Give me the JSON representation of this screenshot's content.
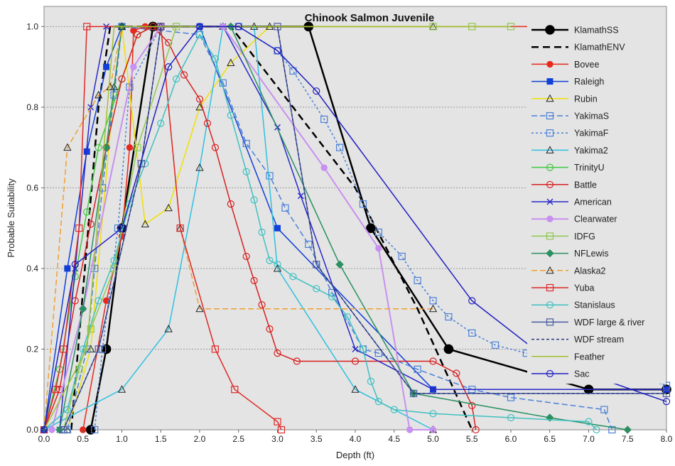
{
  "chart_data": {
    "type": "line",
    "title": "Chinook Salmon Juvenile",
    "xlabel": "Depth (ft)",
    "ylabel": "Probable Suitability",
    "xlim": [
      0,
      8
    ],
    "ylim": [
      0,
      1.05
    ],
    "xticks": [
      "0.0",
      "0.5",
      "1.0",
      "1.5",
      "2.0",
      "2.5",
      "3.0",
      "3.5",
      "4.0",
      "4.5",
      "5.0",
      "5.5",
      "6.0",
      "6.5",
      "7.0",
      "7.5",
      "8.0"
    ],
    "yticks": [
      "0.0",
      "0.2",
      "0.4",
      "0.6",
      "0.8",
      "1.0"
    ],
    "grid": "horizontal dotted",
    "legend_position": "right",
    "series": [
      {
        "name": "KlamathSS",
        "color": "#000000",
        "dash": "",
        "width": 2.5,
        "marker": "circle-filled",
        "points": [
          [
            0.6,
            0
          ],
          [
            0.8,
            0.2
          ],
          [
            1.0,
            0.5
          ],
          [
            1.4,
            1.0
          ],
          [
            3.4,
            1.0
          ],
          [
            4.2,
            0.5
          ],
          [
            5.2,
            0.2
          ],
          [
            7.0,
            0.1
          ],
          [
            8.0,
            0.1
          ]
        ]
      },
      {
        "name": "KlamathENV",
        "color": "#000000",
        "dash": "10,6",
        "width": 2.5,
        "marker": "none",
        "points": [
          [
            0.35,
            0
          ],
          [
            0.7,
            0.8
          ],
          [
            0.85,
            1.0
          ],
          [
            2.4,
            1.0
          ],
          [
            4.0,
            0.6
          ],
          [
            4.8,
            0.3
          ],
          [
            5.5,
            0
          ]
        ]
      },
      {
        "name": "Bovee",
        "color": "#e8281e",
        "dash": "",
        "width": 1.5,
        "marker": "circle-filled",
        "points": [
          [
            0.5,
            0
          ],
          [
            0.8,
            0.32
          ],
          [
            1.0,
            0.48
          ],
          [
            1.1,
            0.7
          ],
          [
            1.15,
            0.99
          ],
          [
            1.3,
            1.0
          ],
          [
            6.5,
            1.0
          ]
        ]
      },
      {
        "name": "Raleigh",
        "color": "#1040d8",
        "dash": "",
        "width": 1.5,
        "marker": "square-filled",
        "points": [
          [
            0,
            0
          ],
          [
            0.3,
            0.4
          ],
          [
            0.55,
            0.69
          ],
          [
            0.8,
            0.9
          ],
          [
            1.0,
            1.0
          ],
          [
            2.0,
            1.0
          ],
          [
            3.0,
            0.5
          ],
          [
            5.0,
            0.1
          ],
          [
            8.0,
            0.1
          ]
        ]
      },
      {
        "name": "Rubin",
        "color": "#f0e000",
        "dash": "",
        "width": 1.5,
        "marker": "triangle-open",
        "points": [
          [
            0.3,
            0
          ],
          [
            0.6,
            0.2
          ],
          [
            0.9,
            0.85
          ],
          [
            1.0,
            1.0
          ],
          [
            1.3,
            0.51
          ],
          [
            1.6,
            0.55
          ],
          [
            2.0,
            0.8
          ],
          [
            2.4,
            0.91
          ],
          [
            2.9,
            1.0
          ],
          [
            5.0,
            1.0
          ]
        ]
      },
      {
        "name": "YakimaS",
        "color": "#4a80d8",
        "dash": "8,4",
        "width": 1.5,
        "marker": "square-open",
        "points": [
          [
            0.3,
            0
          ],
          [
            0.55,
            0.2
          ],
          [
            0.65,
            0.4
          ],
          [
            0.75,
            0.6
          ],
          [
            0.9,
            0.83
          ],
          [
            1.0,
            1.0
          ],
          [
            2.0,
            0.98
          ],
          [
            2.3,
            0.86
          ],
          [
            2.6,
            0.71
          ],
          [
            2.9,
            0.63
          ],
          [
            3.1,
            0.55
          ],
          [
            3.4,
            0.46
          ],
          [
            3.7,
            0.34
          ],
          [
            4.1,
            0.2
          ],
          [
            4.3,
            0.19
          ],
          [
            4.8,
            0.15
          ],
          [
            5.5,
            0.1
          ],
          [
            6.0,
            0.08
          ],
          [
            7.2,
            0.05
          ],
          [
            7.3,
            0
          ]
        ]
      },
      {
        "name": "YakimaF",
        "color": "#4a80d8",
        "dash": "3,3",
        "width": 1.5,
        "marker": "square-open",
        "points": [
          [
            0.65,
            0
          ],
          [
            0.75,
            0.2
          ],
          [
            0.95,
            0.5
          ],
          [
            1.1,
            0.85
          ],
          [
            1.5,
            1.0
          ],
          [
            2.5,
            1.0
          ],
          [
            3.0,
            0.94
          ],
          [
            3.2,
            0.89
          ],
          [
            3.6,
            0.77
          ],
          [
            3.8,
            0.7
          ],
          [
            4.1,
            0.56
          ],
          [
            4.3,
            0.49
          ],
          [
            4.6,
            0.43
          ],
          [
            4.8,
            0.37
          ],
          [
            5.0,
            0.32
          ],
          [
            5.2,
            0.28
          ],
          [
            5.5,
            0.24
          ],
          [
            5.8,
            0.21
          ],
          [
            6.2,
            0.19
          ],
          [
            7.3,
            0.15
          ],
          [
            8.0,
            0.11
          ]
        ]
      },
      {
        "name": "Yakima2",
        "color": "#30c0e0",
        "dash": "",
        "width": 1.5,
        "marker": "triangle-open",
        "points": [
          [
            0,
            0
          ],
          [
            1.0,
            0.1
          ],
          [
            1.6,
            0.25
          ],
          [
            2.0,
            0.65
          ],
          [
            2.3,
            1.0
          ],
          [
            2.7,
            1.0
          ],
          [
            3.0,
            0.4
          ],
          [
            4.0,
            0.1
          ],
          [
            5.0,
            0
          ]
        ]
      },
      {
        "name": "TrinityU",
        "color": "#40c840",
        "dash": "",
        "width": 1.5,
        "marker": "circle-open",
        "points": [
          [
            0,
            0
          ],
          [
            0.2,
            0.15
          ],
          [
            0.4,
            0.38
          ],
          [
            0.55,
            0.54
          ],
          [
            0.7,
            0.7
          ],
          [
            1.0,
            0.87
          ],
          [
            1.2,
            0.98
          ],
          [
            1.4,
            1.0
          ]
        ]
      },
      {
        "name": "Battle",
        "color": "#d82020",
        "dash": "",
        "width": 1.5,
        "marker": "circle-open",
        "points": [
          [
            0,
            0
          ],
          [
            0.2,
            0.1
          ],
          [
            0.4,
            0.32
          ],
          [
            0.6,
            0.51
          ],
          [
            0.8,
            0.7
          ],
          [
            1.0,
            0.87
          ],
          [
            1.2,
            0.98
          ],
          [
            1.4,
            1.0
          ],
          [
            1.6,
            0.96
          ],
          [
            1.8,
            0.88
          ],
          [
            2.0,
            0.82
          ],
          [
            2.1,
            0.76
          ],
          [
            2.2,
            0.7
          ],
          [
            2.4,
            0.56
          ],
          [
            2.6,
            0.43
          ],
          [
            2.7,
            0.37
          ],
          [
            2.8,
            0.31
          ],
          [
            2.9,
            0.25
          ],
          [
            3.0,
            0.19
          ],
          [
            3.25,
            0.17
          ],
          [
            4.0,
            0.17
          ],
          [
            5.0,
            0.17
          ],
          [
            5.3,
            0.14
          ],
          [
            5.5,
            0.06
          ],
          [
            5.55,
            0
          ]
        ]
      },
      {
        "name": "American",
        "color": "#2828c8",
        "dash": "",
        "width": 1.5,
        "marker": "x",
        "points": [
          [
            0.2,
            0
          ],
          [
            0.4,
            0.4
          ],
          [
            0.6,
            0.8
          ],
          [
            0.8,
            1.0
          ],
          [
            2.3,
            1.0
          ],
          [
            3.0,
            0.75
          ],
          [
            3.3,
            0.58
          ],
          [
            4.0,
            0.2
          ],
          [
            5.0,
            0.1
          ],
          [
            8.0,
            0.1
          ]
        ]
      },
      {
        "name": "Clearwater",
        "color": "#c890f0",
        "dash": "",
        "width": 2,
        "marker": "circle-filled",
        "points": [
          [
            0.1,
            0
          ],
          [
            0.5,
            0.3
          ],
          [
            1.15,
            0.9
          ],
          [
            1.5,
            1.0
          ],
          [
            2.3,
            1.0
          ],
          [
            3.6,
            0.65
          ],
          [
            4.3,
            0.45
          ],
          [
            4.7,
            0
          ],
          [
            5.0,
            0
          ]
        ]
      },
      {
        "name": "IDFG",
        "color": "#90c850",
        "dash": "",
        "width": 1.5,
        "marker": "square-open",
        "points": [
          [
            0.25,
            0
          ],
          [
            0.45,
            0.15
          ],
          [
            0.6,
            0.25
          ],
          [
            0.9,
            0.4
          ],
          [
            1.2,
            0.7
          ],
          [
            1.7,
            1.0
          ],
          [
            5.0,
            1.0
          ],
          [
            5.5,
            1.0
          ],
          [
            6.0,
            1.0
          ]
        ]
      },
      {
        "name": "NFLewis",
        "color": "#2a9060",
        "dash": "",
        "width": 1.5,
        "marker": "diamond-filled",
        "points": [
          [
            0.2,
            0
          ],
          [
            0.5,
            0.3
          ],
          [
            0.8,
            0.7
          ],
          [
            1.0,
            1.0
          ],
          [
            2.4,
            1.0
          ],
          [
            3.8,
            0.41
          ],
          [
            4.75,
            0.09
          ],
          [
            6.5,
            0.03
          ],
          [
            7.5,
            0
          ]
        ]
      },
      {
        "name": "Alaska2",
        "color": "#f0a030",
        "dash": "8,4",
        "width": 1.5,
        "marker": "triangle-open",
        "points": [
          [
            0,
            0
          ],
          [
            0.3,
            0.7
          ],
          [
            0.7,
            0.83
          ],
          [
            0.85,
            0.85
          ],
          [
            1.0,
            1.0
          ],
          [
            1.5,
            1.0
          ],
          [
            1.75,
            0.5
          ],
          [
            2.0,
            0.3
          ],
          [
            5.0,
            0.3
          ]
        ]
      },
      {
        "name": "Yuba",
        "color": "#e02828",
        "dash": "",
        "width": 1.5,
        "marker": "square-open",
        "points": [
          [
            0,
            0
          ],
          [
            0.15,
            0.1
          ],
          [
            0.25,
            0.2
          ],
          [
            0.45,
            0.5
          ],
          [
            0.55,
            1.0
          ],
          [
            1.5,
            1.0
          ],
          [
            1.75,
            0.5
          ],
          [
            2.2,
            0.2
          ],
          [
            2.45,
            0.1
          ],
          [
            3.0,
            0.02
          ],
          [
            3.05,
            0
          ]
        ]
      },
      {
        "name": "Stanislaus",
        "color": "#40c0c0",
        "dash": "",
        "width": 1.5,
        "marker": "circle-open",
        "points": [
          [
            0,
            0
          ],
          [
            0.3,
            0.05
          ],
          [
            0.5,
            0.2
          ],
          [
            0.7,
            0.32
          ],
          [
            0.9,
            0.42
          ],
          [
            1.1,
            0.56
          ],
          [
            1.3,
            0.66
          ],
          [
            1.5,
            0.76
          ],
          [
            1.7,
            0.87
          ],
          [
            2.0,
            0.98
          ],
          [
            2.2,
            0.92
          ],
          [
            2.4,
            0.78
          ],
          [
            2.6,
            0.64
          ],
          [
            2.7,
            0.57
          ],
          [
            2.8,
            0.49
          ],
          [
            2.9,
            0.42
          ],
          [
            3.0,
            0.41
          ],
          [
            3.2,
            0.38
          ],
          [
            3.5,
            0.35
          ],
          [
            3.7,
            0.33
          ],
          [
            3.9,
            0.28
          ],
          [
            4.1,
            0.2
          ],
          [
            4.2,
            0.12
          ],
          [
            4.3,
            0.07
          ],
          [
            4.5,
            0.05
          ],
          [
            5.0,
            0.04
          ],
          [
            6.0,
            0.03
          ],
          [
            7.0,
            0.02
          ],
          [
            7.1,
            0
          ]
        ]
      },
      {
        "name": "WDF large & river",
        "color": "#4a5aa0",
        "dash": "",
        "width": 1.5,
        "marker": "square-open",
        "points": [
          [
            0.25,
            0
          ],
          [
            0.7,
            0.2
          ],
          [
            1.25,
            0.66
          ],
          [
            1.5,
            1.0
          ],
          [
            3.0,
            1.0
          ],
          [
            3.5,
            0.41
          ],
          [
            4.75,
            0.09
          ],
          [
            8.0,
            0.09
          ]
        ]
      },
      {
        "name": "WDF stream",
        "color": "#2a3a80",
        "dash": "4,3",
        "width": 1.5,
        "marker": "none",
        "points": [
          [
            0.25,
            0
          ],
          [
            0.7,
            0.2
          ],
          [
            1.25,
            0.66
          ],
          [
            1.5,
            1.0
          ],
          [
            3.0,
            1.0
          ],
          [
            3.5,
            0.41
          ],
          [
            4.75,
            0.09
          ],
          [
            8.0,
            0.09
          ]
        ]
      },
      {
        "name": "Feather",
        "color": "#a0c030",
        "dash": "",
        "width": 1.5,
        "marker": "none",
        "points": [
          [
            0,
            0
          ],
          [
            0.55,
            0.2
          ],
          [
            0.9,
            1.0
          ],
          [
            5.0,
            1.0
          ],
          [
            6.0,
            1.0
          ]
        ]
      },
      {
        "name": "Sac",
        "color": "#2020c0",
        "dash": "",
        "width": 1.5,
        "marker": "circle-open",
        "points": [
          [
            0,
            0
          ],
          [
            0.4,
            0.41
          ],
          [
            1.0,
            0.5
          ],
          [
            1.6,
            0.9
          ],
          [
            2.0,
            1.0
          ],
          [
            2.5,
            1.0
          ],
          [
            3.0,
            0.94
          ],
          [
            3.5,
            0.84
          ],
          [
            5.5,
            0.32
          ],
          [
            6.5,
            0.17
          ],
          [
            8.0,
            0.07
          ]
        ]
      }
    ]
  }
}
